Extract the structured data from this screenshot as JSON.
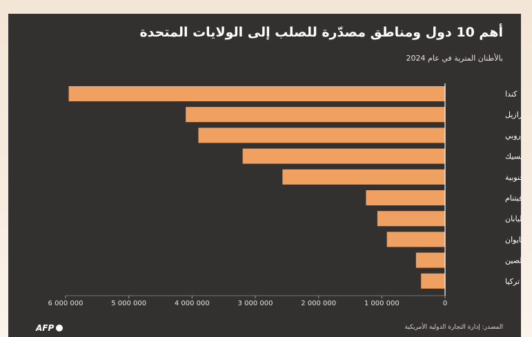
{
  "chart_data": {
    "type": "bar",
    "orientation": "horizontal",
    "title": "أهم 10 دول ومناطق مصدّرة للصلب إلى الولايات المتحدة",
    "subtitle": "بالأطنان المترية في عام 2024",
    "categories": [
      "كندا",
      "البرازيل",
      "الاتحاد الأوروبي",
      "المكسيك",
      "كوريا الجنوبية",
      "فيتنام",
      "اليابان",
      "تايوان",
      "الصين",
      "تركيا"
    ],
    "values": [
      5950000,
      4100000,
      3900000,
      3200000,
      2570000,
      1250000,
      1070000,
      920000,
      460000,
      380000
    ],
    "xlim": [
      0,
      6000000
    ],
    "xticks": [
      "6 000 000",
      "5 000 000",
      "4 000 000",
      "3 000 000",
      "2 000 000",
      "1 000 000",
      "0"
    ],
    "xtick_values": [
      6000000,
      5000000,
      4000000,
      3000000,
      2000000,
      1000000,
      0
    ],
    "x_axis_reversed": true,
    "grid": false,
    "bar_color": "#f0a060",
    "background_color": "#333130"
  },
  "source": "المصدر: إدارة التجارة الدولية الأمريكية",
  "logo_text": "AFP"
}
